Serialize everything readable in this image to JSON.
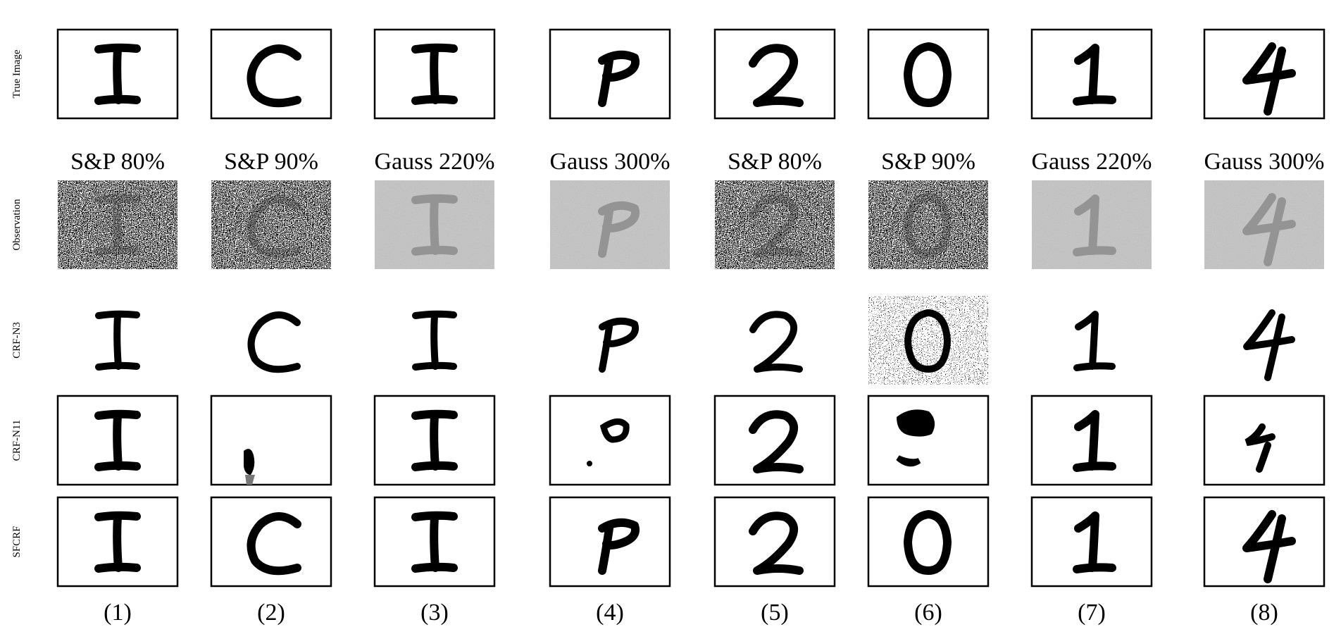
{
  "row_labels": [
    "True Image",
    "Observation",
    "CRF-N3",
    "CRF-N11",
    "SFCRF"
  ],
  "columns": [
    {
      "glyph": "I",
      "noise": "S&P 80%",
      "number": "(1)"
    },
    {
      "glyph": "C",
      "noise": "S&P 90%",
      "number": "(2)"
    },
    {
      "glyph": "I",
      "noise": "Gauss 220%",
      "number": "(3)"
    },
    {
      "glyph": "P",
      "noise": "Gauss 300%",
      "number": "(4)"
    },
    {
      "glyph": "2",
      "noise": "S&P 80%",
      "number": "(5)"
    },
    {
      "glyph": "0",
      "noise": "S&P 90%",
      "number": "(6)"
    },
    {
      "glyph": "1",
      "noise": "Gauss 220%",
      "number": "(7)"
    },
    {
      "glyph": "4",
      "noise": "Gauss 300%",
      "number": "(8)"
    }
  ],
  "colors": {
    "ink": "#000000",
    "gray": "#8a8a8a",
    "white": "#ffffff"
  }
}
